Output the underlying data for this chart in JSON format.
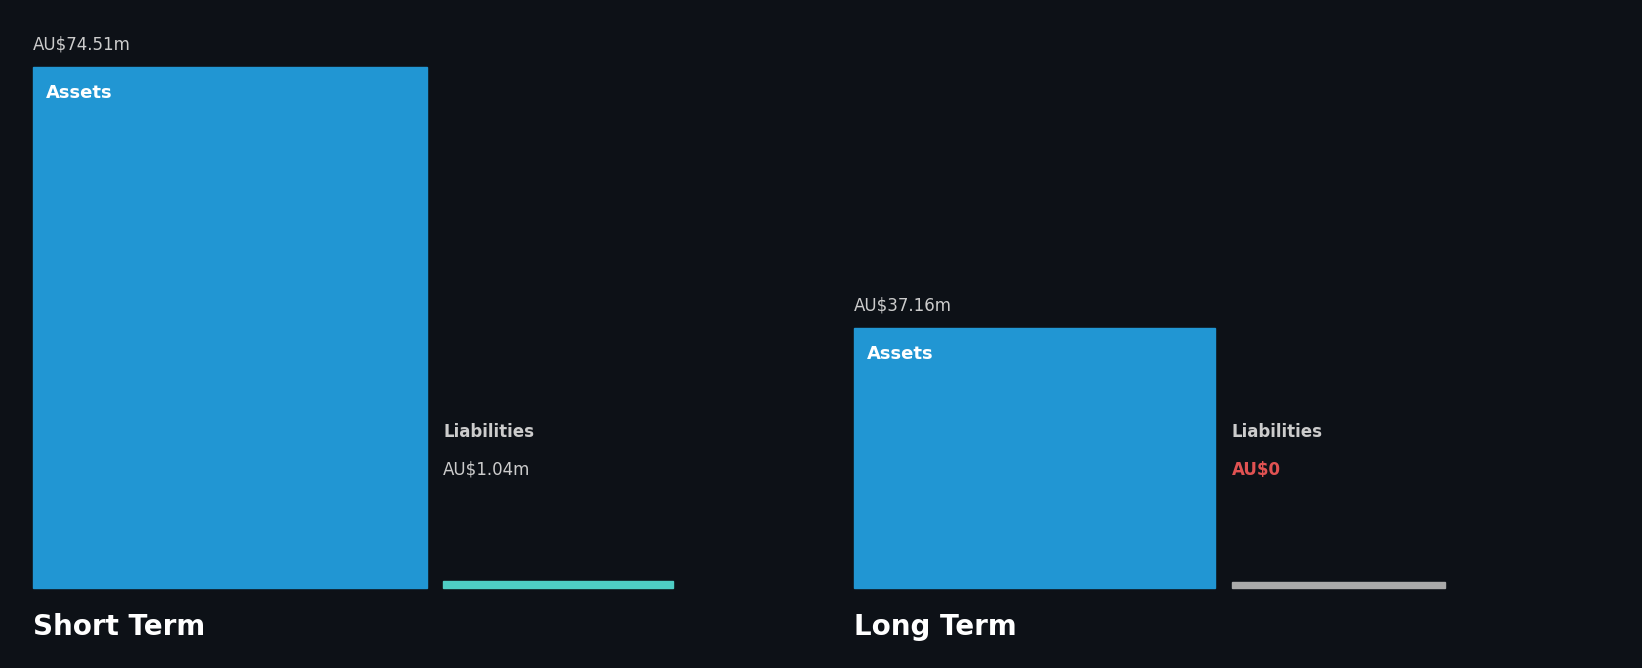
{
  "background_color": "#0d1117",
  "bar_color_assets": "#2196d3",
  "bar_color_liabilities_short": "#4ecdc4",
  "bar_color_liabilities_long": "#888888",
  "short_term": {
    "assets_value": 74.51,
    "liabilities_value": 1.04,
    "assets_label": "Assets",
    "liabilities_label": "Liabilities",
    "assets_text": "AU$74.51m",
    "liabilities_text": "AU$1.04m",
    "section_label": "Short Term"
  },
  "long_term": {
    "assets_value": 37.16,
    "liabilities_value": 0.0,
    "assets_label": "Assets",
    "liabilities_label": "Liabilities",
    "assets_text": "AU$37.16m",
    "liabilities_text": "AU$0",
    "section_label": "Long Term"
  },
  "max_value": 74.51,
  "text_color_white": "#ffffff",
  "text_color_red": "#e05252",
  "text_color_gray": "#cccccc",
  "label_fontsize": 12,
  "value_fontsize": 12,
  "section_label_fontsize": 20,
  "inner_label_fontsize": 13
}
